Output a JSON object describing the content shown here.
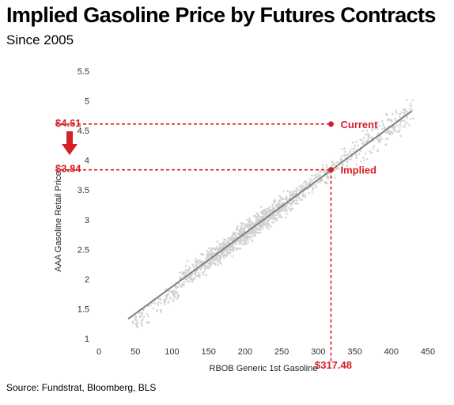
{
  "title": "Implied Gasoline Price by Futures Contracts",
  "subtitle": "Since 2005",
  "source": "Source: Fundstrat, Bloomberg, BLS",
  "colors": {
    "accent": "#d42027",
    "scatter": "#cfcfcf",
    "fit_line": "#808080"
  },
  "chart_data": {
    "type": "scatter",
    "xlabel": "RBOB Generic 1st Gasoline",
    "ylabel": "AAA Gasoline Retail Price",
    "xlim": [
      0,
      450
    ],
    "ylim": [
      1,
      5.5
    ],
    "xticks": [
      0,
      50,
      100,
      150,
      200,
      250,
      300,
      350,
      400,
      450
    ],
    "yticks": [
      1,
      1.5,
      2,
      2.5,
      3,
      3.5,
      4,
      4.5,
      5,
      5.5
    ],
    "grid": false,
    "trend_line": {
      "x": [
        40,
        428
      ],
      "y": [
        1.33,
        4.83
      ]
    },
    "annotations": {
      "current": {
        "label": "Current",
        "price_label": "$4.61",
        "x": 317.48,
        "y": 4.61
      },
      "implied": {
        "label": "Implied",
        "price_label": "$3.84",
        "x": 317.48,
        "y": 3.84
      },
      "x_marker_label": "$317.48"
    },
    "points_description": "dense cloud of weekly observations along the trend line from about x=40 to x=430"
  }
}
